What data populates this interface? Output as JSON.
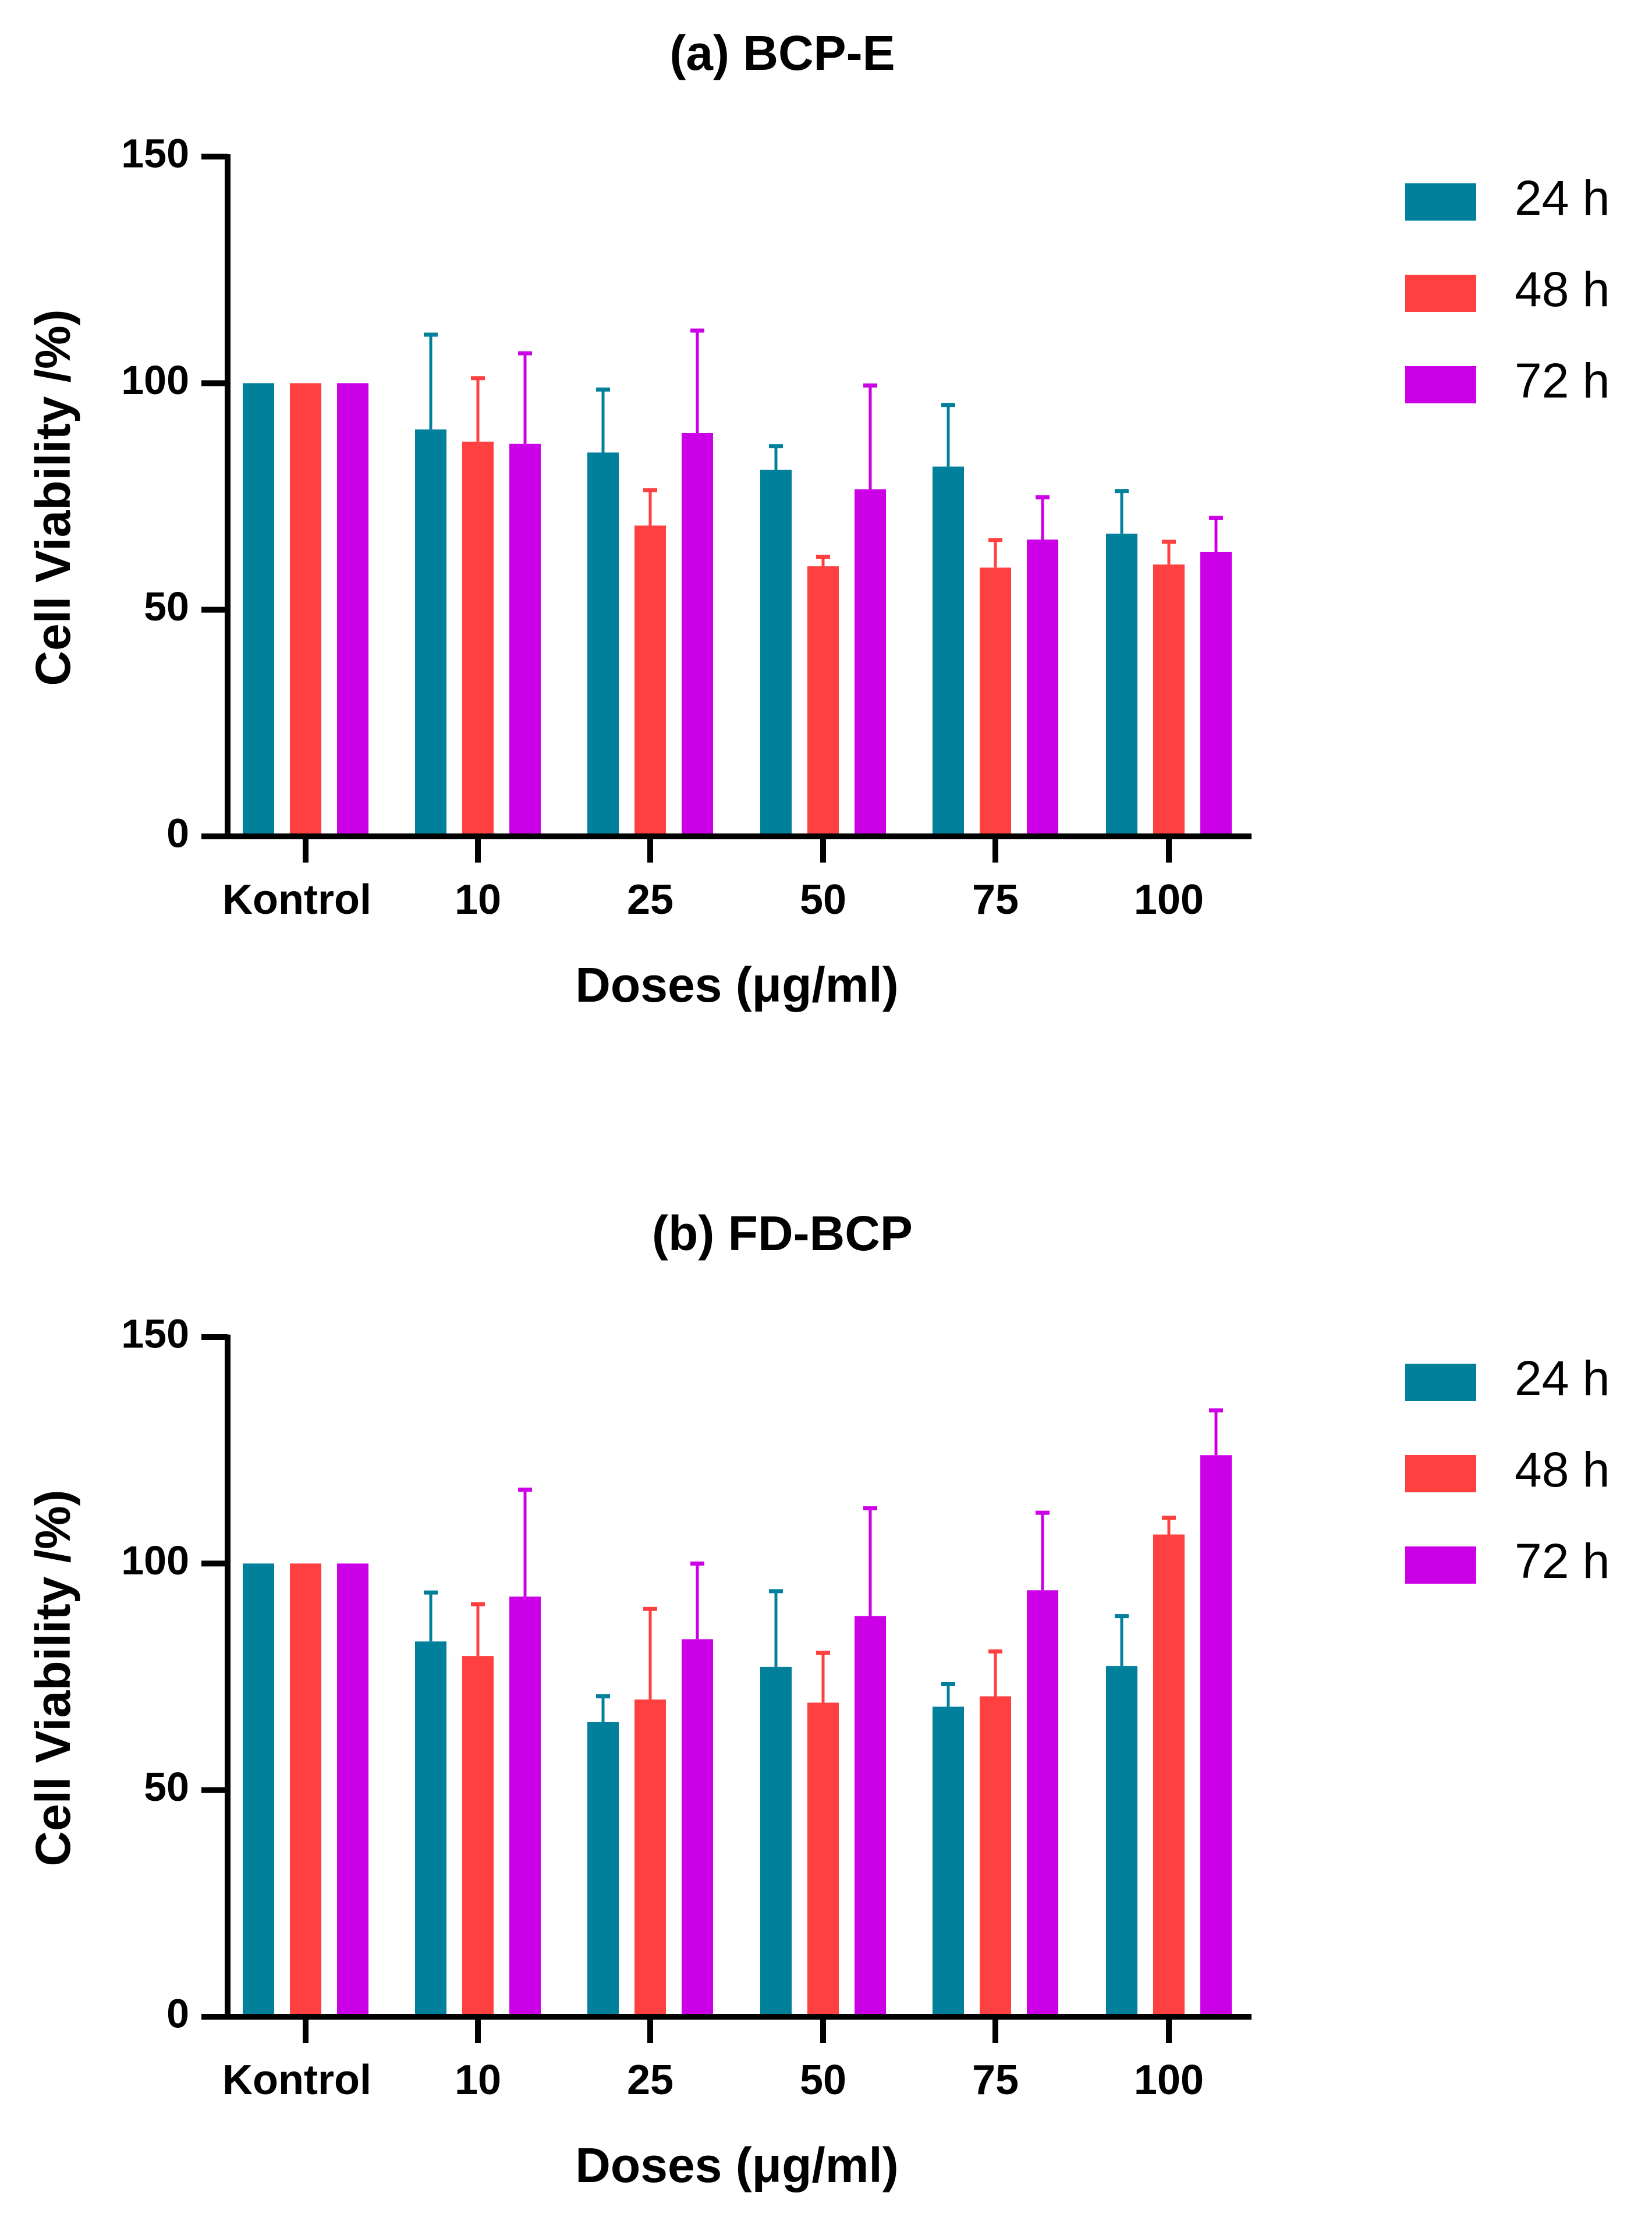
{
  "colors": {
    "24 h": "#00809A",
    "48 h": "#FF4040",
    "72 h": "#CC00E6"
  },
  "chart_data": [
    {
      "type": "bar",
      "title": "(a)  BCP-E",
      "xlabel": "Doses  (μg/ml)",
      "ylabel": "Cell Viability /%)",
      "ylim": [
        0,
        150
      ],
      "yticks": [
        "0",
        "50",
        "100",
        "150"
      ],
      "categories": [
        "Kontrol",
        "10",
        "25",
        "50",
        "75",
        "100"
      ],
      "legend_position": "right",
      "grid": false,
      "series": [
        {
          "name": "24 h",
          "values": [
            100,
            89.8,
            84.7,
            80.9,
            81.6,
            66.8
          ],
          "error": [
            0,
            20.9,
            13.9,
            5.2,
            13.6,
            9.4
          ]
        },
        {
          "name": "48 h",
          "values": [
            100,
            87.1,
            68.6,
            59.6,
            59.3,
            60.0
          ],
          "error": [
            0,
            14.0,
            7.8,
            2.1,
            6.1,
            5.0
          ]
        },
        {
          "name": "72 h",
          "values": [
            100,
            86.6,
            89.0,
            76.6,
            65.5,
            62.8
          ],
          "error": [
            0,
            20.0,
            22.6,
            22.9,
            9.3,
            7.5
          ]
        }
      ]
    },
    {
      "type": "bar",
      "title": "(b)  FD-BCP",
      "xlabel": "Doses  (μg/ml)",
      "ylabel": "Cell Viability /%)",
      "ylim": [
        0,
        150
      ],
      "yticks": [
        "0",
        "50",
        "100",
        "150"
      ],
      "categories": [
        "Kontrol",
        "10",
        "25",
        "50",
        "75",
        "100"
      ],
      "legend_position": "right",
      "grid": false,
      "series": [
        {
          "name": "24 h",
          "values": [
            100,
            82.8,
            65.0,
            77.2,
            68.4,
            77.4
          ],
          "error": [
            0,
            10.8,
            5.7,
            16.7,
            5.0,
            11.0
          ]
        },
        {
          "name": "48 h",
          "values": [
            100,
            79.6,
            70.0,
            69.3,
            70.7,
            106.4
          ],
          "error": [
            0,
            11.4,
            20.0,
            11.0,
            9.9,
            3.7
          ]
        },
        {
          "name": "72 h",
          "values": [
            100,
            92.7,
            83.3,
            88.4,
            94.1,
            123.9
          ],
          "error": [
            0,
            23.6,
            16.7,
            23.8,
            17.1,
            9.9
          ]
        }
      ]
    }
  ]
}
